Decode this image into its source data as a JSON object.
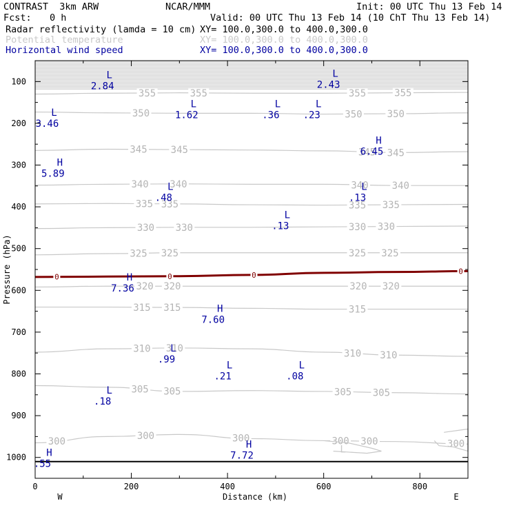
{
  "header": {
    "model": "CONTRAST  3km ARW",
    "org": "NCAR/MMM",
    "init": "Init: 00 UTC Thu 13 Feb 14",
    "fcst_label": "Fcst:",
    "fcst_value": "0 h",
    "valid": "Valid: 00 UTC Thu 13 Feb 14 (10 ChT Thu 13 Feb 14)"
  },
  "fields": [
    {
      "name": "Radar reflectivity (lamda = 10 cm)",
      "xy": "XY= 100.0,300.0 to 400.0,300.0",
      "color": "#000000"
    },
    {
      "name": "Potential temperature",
      "xy": "XY= 100.0,300.0 to 400.0,300.0",
      "color": "#c8c8c8"
    },
    {
      "name": "Horizontal wind speed",
      "xy": "XY= 100.0,300.0 to 400.0,300.0",
      "color": "#0000a0"
    }
  ],
  "chart_data": {
    "type": "cross-section contour",
    "xlabel": "Distance (km)",
    "ylabel": "Pressure (hPa)",
    "xlim": [
      0,
      900
    ],
    "ylim": [
      1050,
      50
    ],
    "xticks": [
      0,
      200,
      400,
      600,
      800
    ],
    "yticks": [
      100,
      200,
      300,
      400,
      500,
      600,
      700,
      800,
      900,
      1000
    ],
    "x_end_labels": {
      "left": "W",
      "right": "E"
    },
    "surface_pressure": 1010,
    "freezing_level": {
      "label": "0",
      "color": "#800000",
      "points": [
        [
          0,
          568
        ],
        [
          150,
          567
        ],
        [
          300,
          566
        ],
        [
          450,
          563
        ],
        [
          600,
          558
        ],
        [
          750,
          556
        ],
        [
          900,
          554
        ]
      ],
      "label_x": [
        45,
        280,
        455,
        885
      ]
    },
    "theta_contours": [
      {
        "value": 355,
        "points": [
          [
            0,
            130
          ],
          [
            150,
            128
          ],
          [
            300,
            127
          ],
          [
            450,
            128
          ],
          [
            600,
            128
          ],
          [
            750,
            127
          ],
          [
            900,
            126
          ]
        ],
        "labels": [
          [
            233,
            355
          ],
          [
            340,
            355
          ],
          [
            670,
            355
          ],
          [
            765,
            355
          ]
        ]
      },
      {
        "value": 350,
        "points": [
          [
            0,
            173
          ],
          [
            150,
            175
          ],
          [
            300,
            176
          ],
          [
            450,
            176
          ],
          [
            600,
            178
          ],
          [
            750,
            177
          ],
          [
            900,
            175
          ]
        ],
        "labels": [
          [
            220,
            350
          ],
          [
            662,
            350
          ],
          [
            750,
            350
          ]
        ]
      },
      {
        "value": 345,
        "points": [
          [
            0,
            265
          ],
          [
            150,
            262
          ],
          [
            300,
            263
          ],
          [
            450,
            264
          ],
          [
            600,
            266
          ],
          [
            750,
            270
          ],
          [
            900,
            268
          ]
        ],
        "labels": [
          [
            215,
            345
          ],
          [
            300,
            345
          ],
          [
            690,
            345
          ],
          [
            750,
            345
          ]
        ]
      },
      {
        "value": 340,
        "points": [
          [
            0,
            348
          ],
          [
            150,
            346
          ],
          [
            300,
            345
          ],
          [
            450,
            346
          ],
          [
            600,
            346
          ],
          [
            750,
            349
          ],
          [
            900,
            349
          ]
        ],
        "labels": [
          [
            218,
            340
          ],
          [
            298,
            340
          ],
          [
            675,
            340
          ],
          [
            760,
            340
          ]
        ]
      },
      {
        "value": 335,
        "points": [
          [
            0,
            393
          ],
          [
            150,
            392
          ],
          [
            300,
            393
          ],
          [
            450,
            395
          ],
          [
            600,
            396
          ],
          [
            750,
            395
          ],
          [
            900,
            394
          ]
        ],
        "labels": [
          [
            227,
            335
          ],
          [
            280,
            335
          ],
          [
            670,
            335
          ],
          [
            740,
            335
          ]
        ]
      },
      {
        "value": 330,
        "points": [
          [
            0,
            452
          ],
          [
            150,
            450
          ],
          [
            300,
            449
          ],
          [
            450,
            449
          ],
          [
            600,
            448
          ],
          [
            750,
            447
          ],
          [
            900,
            446
          ]
        ],
        "labels": [
          [
            230,
            330
          ],
          [
            310,
            330
          ],
          [
            670,
            330
          ],
          [
            730,
            330
          ]
        ]
      },
      {
        "value": 325,
        "points": [
          [
            0,
            515
          ],
          [
            150,
            512
          ],
          [
            300,
            510
          ],
          [
            450,
            510
          ],
          [
            600,
            510
          ],
          [
            750,
            510
          ],
          [
            900,
            510
          ]
        ],
        "labels": [
          [
            215,
            325
          ],
          [
            280,
            325
          ],
          [
            670,
            325
          ],
          [
            738,
            325
          ]
        ]
      },
      {
        "value": 320,
        "points": [
          [
            0,
            592
          ],
          [
            150,
            590
          ],
          [
            300,
            590
          ],
          [
            450,
            590
          ],
          [
            600,
            590
          ],
          [
            750,
            590
          ],
          [
            900,
            590
          ]
        ],
        "labels": [
          [
            228,
            320
          ],
          [
            285,
            320
          ],
          [
            672,
            320
          ],
          [
            740,
            320
          ]
        ]
      },
      {
        "value": 315,
        "points": [
          [
            0,
            640
          ],
          [
            150,
            640
          ],
          [
            300,
            641
          ],
          [
            450,
            643
          ],
          [
            600,
            645
          ],
          [
            750,
            645
          ],
          [
            900,
            645
          ]
        ],
        "labels": [
          [
            222,
            315
          ],
          [
            285,
            315
          ],
          [
            670,
            315
          ]
        ]
      },
      {
        "value": 310,
        "points": [
          [
            0,
            748
          ],
          [
            150,
            740
          ],
          [
            300,
            738
          ],
          [
            450,
            740
          ],
          [
            600,
            748
          ],
          [
            750,
            755
          ],
          [
            900,
            758
          ]
        ],
        "labels": [
          [
            222,
            310
          ],
          [
            290,
            310
          ],
          [
            660,
            310
          ],
          [
            735,
            310
          ]
        ]
      },
      {
        "value": 305,
        "points": [
          [
            0,
            828
          ],
          [
            150,
            832
          ],
          [
            300,
            842
          ],
          [
            450,
            840
          ],
          [
            600,
            842
          ],
          [
            750,
            845
          ],
          [
            900,
            848
          ]
        ],
        "labels": [
          [
            218,
            305
          ],
          [
            285,
            305
          ],
          [
            640,
            305
          ],
          [
            720,
            305
          ]
        ]
      },
      {
        "value": 300,
        "points": [
          [
            0,
            965
          ],
          [
            150,
            950
          ],
          [
            300,
            945
          ],
          [
            450,
            955
          ],
          [
            600,
            960
          ],
          [
            750,
            962
          ],
          [
            900,
            968
          ]
        ],
        "labels": [
          [
            45,
            300
          ],
          [
            230,
            300
          ],
          [
            428,
            300
          ],
          [
            635,
            300
          ],
          [
            695,
            300
          ],
          [
            875,
            300
          ]
        ]
      }
    ],
    "wind_extrema": [
      {
        "type": "L",
        "value": "2.84",
        "x": 140,
        "p": 95
      },
      {
        "type": "L",
        "value": "2.43",
        "x": 610,
        "p": 92
      },
      {
        "type": "L",
        "value": "1.62",
        "x": 315,
        "p": 165
      },
      {
        "type": "L",
        "value": ".36",
        "x": 490,
        "p": 165
      },
      {
        "type": "L",
        "value": ".23",
        "x": 575,
        "p": 165
      },
      {
        "type": "L",
        "value": "3.46",
        "x": 25,
        "p": 185
      },
      {
        "type": "H",
        "value": "6.45",
        "x": 700,
        "p": 252
      },
      {
        "type": "H",
        "value": "5.89",
        "x": 37,
        "p": 305
      },
      {
        "type": "L",
        "value": ".48",
        "x": 267,
        "p": 363
      },
      {
        "type": "L",
        "value": ".13",
        "x": 670,
        "p": 363
      },
      {
        "type": "L",
        "value": ".13",
        "x": 510,
        "p": 430
      },
      {
        "type": "H",
        "value": "7.36",
        "x": 182,
        "p": 580
      },
      {
        "type": "H",
        "value": "7.60",
        "x": 370,
        "p": 655
      },
      {
        "type": "L",
        "value": ".99",
        "x": 273,
        "p": 750
      },
      {
        "type": "L",
        "value": ".21",
        "x": 390,
        "p": 790
      },
      {
        "type": "L",
        "value": ".08",
        "x": 540,
        "p": 790
      },
      {
        "type": "L",
        "value": ".18",
        "x": 140,
        "p": 850
      },
      {
        "type": "H",
        "value": "7.72",
        "x": 430,
        "p": 980
      },
      {
        "type": "H",
        "value": ".55",
        "x": 15,
        "p": 1000
      }
    ],
    "extra_contour_labels": [
      {
        "text": "L",
        "x": 640,
        "p": 980,
        "color": "#c8c8c8"
      }
    ]
  }
}
